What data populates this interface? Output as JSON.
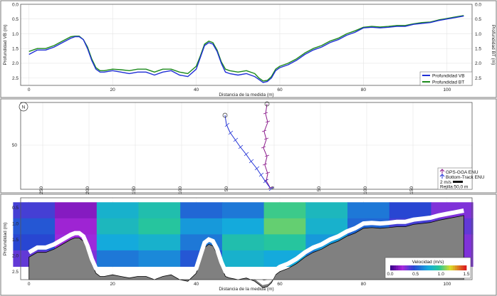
{
  "panels": {
    "depth": {
      "xlabel": "Distancia de la medida (m)",
      "ylabel_left": "Profundidad VB (m)",
      "ylabel_right": "Profundidad BT (m)",
      "xlim": [
        -2,
        106
      ],
      "ylim": [
        0,
        2.75
      ],
      "xticks": [
        "0",
        "20",
        "40",
        "60",
        "80",
        "100"
      ],
      "yticks": [
        "0.0",
        "0.5",
        "1.0",
        "1.5",
        "2.0",
        "2.5"
      ],
      "legend": [
        "Profundidad VB",
        "Profundidad BT"
      ]
    },
    "track": {
      "compass_label": "N",
      "yticks": [
        "50"
      ],
      "xticks": [
        "250",
        "200",
        "150",
        "100",
        "50",
        "0",
        "50",
        "100",
        "150"
      ],
      "legend": {
        "gps": "GPS-GGA ENU",
        "bt": "Bottom-Track ENU",
        "scale": "2 m/s",
        "grid": "Rejilla:50,0 m"
      }
    },
    "contour": {
      "xlabel": "Distancia de la medida (m)",
      "ylabel": "Profundidad (m)",
      "xticks": [
        "0",
        "20",
        "40",
        "60",
        "80",
        "100"
      ],
      "yticks": [
        "0.5",
        "1.0",
        "1.5",
        "2.0",
        "2.5"
      ],
      "colorbar_title": "Velocidad (m/s)",
      "colorbar_ticks": [
        "0.0",
        "0.5",
        "1.0",
        "1.5"
      ]
    }
  },
  "colors": {
    "vb": "#1f2fd6",
    "bt": "#1c8a1c",
    "gps": "#8b1a8b",
    "bt_track": "#1f2fd6",
    "bed": "#808080"
  },
  "chart_data": [
    {
      "type": "line",
      "title": "",
      "xlabel": "Distancia de la medida (m)",
      "ylabel": "Profundidad VB (m)",
      "xlim": [
        -2,
        106
      ],
      "ylim": [
        2.75,
        0
      ],
      "series": [
        {
          "name": "Profundidad VB",
          "x": [
            0,
            2,
            4,
            6,
            8,
            10,
            11,
            12,
            13,
            14,
            15,
            16,
            17,
            18,
            20,
            22,
            24,
            26,
            28,
            30,
            32,
            34,
            36,
            38,
            40,
            41,
            42,
            43,
            44,
            45,
            46,
            47,
            48,
            50,
            52,
            54,
            55,
            56,
            57,
            58,
            59,
            60,
            62,
            64,
            66,
            68,
            70,
            72,
            74,
            76,
            78,
            80,
            82,
            84,
            86,
            88,
            90,
            92,
            94,
            96,
            98,
            100,
            102,
            104
          ],
          "values": [
            1.7,
            1.55,
            1.55,
            1.45,
            1.3,
            1.15,
            1.1,
            1.1,
            1.2,
            1.5,
            1.9,
            2.2,
            2.3,
            2.3,
            2.25,
            2.3,
            2.35,
            2.3,
            2.3,
            2.4,
            2.3,
            2.25,
            2.4,
            2.45,
            2.2,
            1.8,
            1.4,
            1.3,
            1.35,
            1.6,
            2.0,
            2.3,
            2.35,
            2.4,
            2.35,
            2.45,
            2.55,
            2.65,
            2.62,
            2.5,
            2.25,
            2.15,
            2.05,
            1.9,
            1.7,
            1.55,
            1.45,
            1.3,
            1.2,
            1.05,
            0.95,
            0.8,
            0.78,
            0.8,
            0.78,
            0.75,
            0.75,
            0.68,
            0.65,
            0.62,
            0.55,
            0.5,
            0.45,
            0.4
          ]
        },
        {
          "name": "Profundidad BT",
          "x": [
            0,
            2,
            4,
            6,
            8,
            10,
            11,
            12,
            13,
            14,
            15,
            16,
            17,
            18,
            20,
            22,
            24,
            26,
            28,
            30,
            32,
            34,
            36,
            38,
            40,
            41,
            42,
            43,
            44,
            45,
            46,
            47,
            48,
            50,
            52,
            54,
            55,
            56,
            57,
            58,
            59,
            60,
            62,
            64,
            66,
            68,
            70,
            72,
            74,
            76,
            78,
            80,
            82,
            84,
            86,
            88,
            90,
            92,
            94,
            96,
            98,
            100,
            102,
            104
          ],
          "values": [
            1.6,
            1.5,
            1.5,
            1.4,
            1.25,
            1.1,
            1.08,
            1.08,
            1.2,
            1.45,
            1.85,
            2.15,
            2.25,
            2.25,
            2.2,
            2.22,
            2.25,
            2.2,
            2.2,
            2.3,
            2.2,
            2.2,
            2.3,
            2.35,
            2.1,
            1.75,
            1.35,
            1.25,
            1.3,
            1.55,
            1.95,
            2.2,
            2.25,
            2.3,
            2.25,
            2.35,
            2.5,
            2.6,
            2.58,
            2.45,
            2.2,
            2.1,
            2.0,
            1.85,
            1.65,
            1.5,
            1.4,
            1.25,
            1.15,
            1.0,
            0.9,
            0.78,
            0.75,
            0.77,
            0.75,
            0.72,
            0.72,
            0.66,
            0.62,
            0.6,
            0.53,
            0.48,
            0.43,
            0.38
          ]
        }
      ]
    },
    {
      "type": "line",
      "title": "",
      "yticks": [
        "50"
      ],
      "xticks": [
        "250",
        "200",
        "150",
        "100",
        "50",
        "0",
        "50",
        "100",
        "150"
      ],
      "series": [
        {
          "name": "GPS-GGA ENU",
          "x": [
            0,
            2,
            -1,
            3,
            1,
            4,
            2,
            5,
            3,
            6,
            4,
            7
          ],
          "y": [
            100,
            80,
            60,
            45,
            30,
            20,
            10,
            5,
            0,
            -3,
            -6,
            -8
          ]
        },
        {
          "name": "Bottom-Track ENU",
          "x": [
            -50,
            -48,
            -45,
            -40,
            -35,
            -30,
            -25,
            -20,
            -15,
            -10,
            -5,
            0,
            5
          ],
          "y": [
            80,
            70,
            58,
            48,
            40,
            33,
            25,
            18,
            12,
            5,
            0,
            -5,
            -8
          ]
        }
      ]
    },
    {
      "type": "heatmap",
      "title": "",
      "xlabel": "Distancia de la medida (m)",
      "ylabel": "Profundidad (m)",
      "value_label": "Velocidad (m/s)",
      "value_range": [
        0.0,
        1.5
      ],
      "xlim": [
        -2,
        106
      ],
      "ylim": [
        2.75,
        0.2
      ],
      "x": [
        0,
        10,
        20,
        30,
        40,
        50,
        60,
        70,
        80,
        90,
        100
      ],
      "y": [
        0.5,
        1.0,
        1.5,
        2.0
      ],
      "z": [
        [
          0.4,
          0.15,
          0.8,
          0.9,
          0.55,
          0.6,
          1.0,
          0.85,
          0.6,
          0.45,
          0.3
        ],
        [
          0.5,
          0.2,
          0.85,
          0.95,
          0.7,
          0.75,
          1.05,
          0.8,
          0.55,
          0.4,
          0.35
        ],
        [
          0.45,
          0.25,
          0.75,
          0.8,
          0.6,
          0.9,
          0.95,
          0.7,
          0.5,
          0.4,
          0.3
        ],
        [
          0.35,
          0.3,
          0.6,
          0.65,
          0.5,
          0.8,
          0.75,
          0.6,
          0.45,
          0.35,
          0.3
        ]
      ]
    }
  ]
}
